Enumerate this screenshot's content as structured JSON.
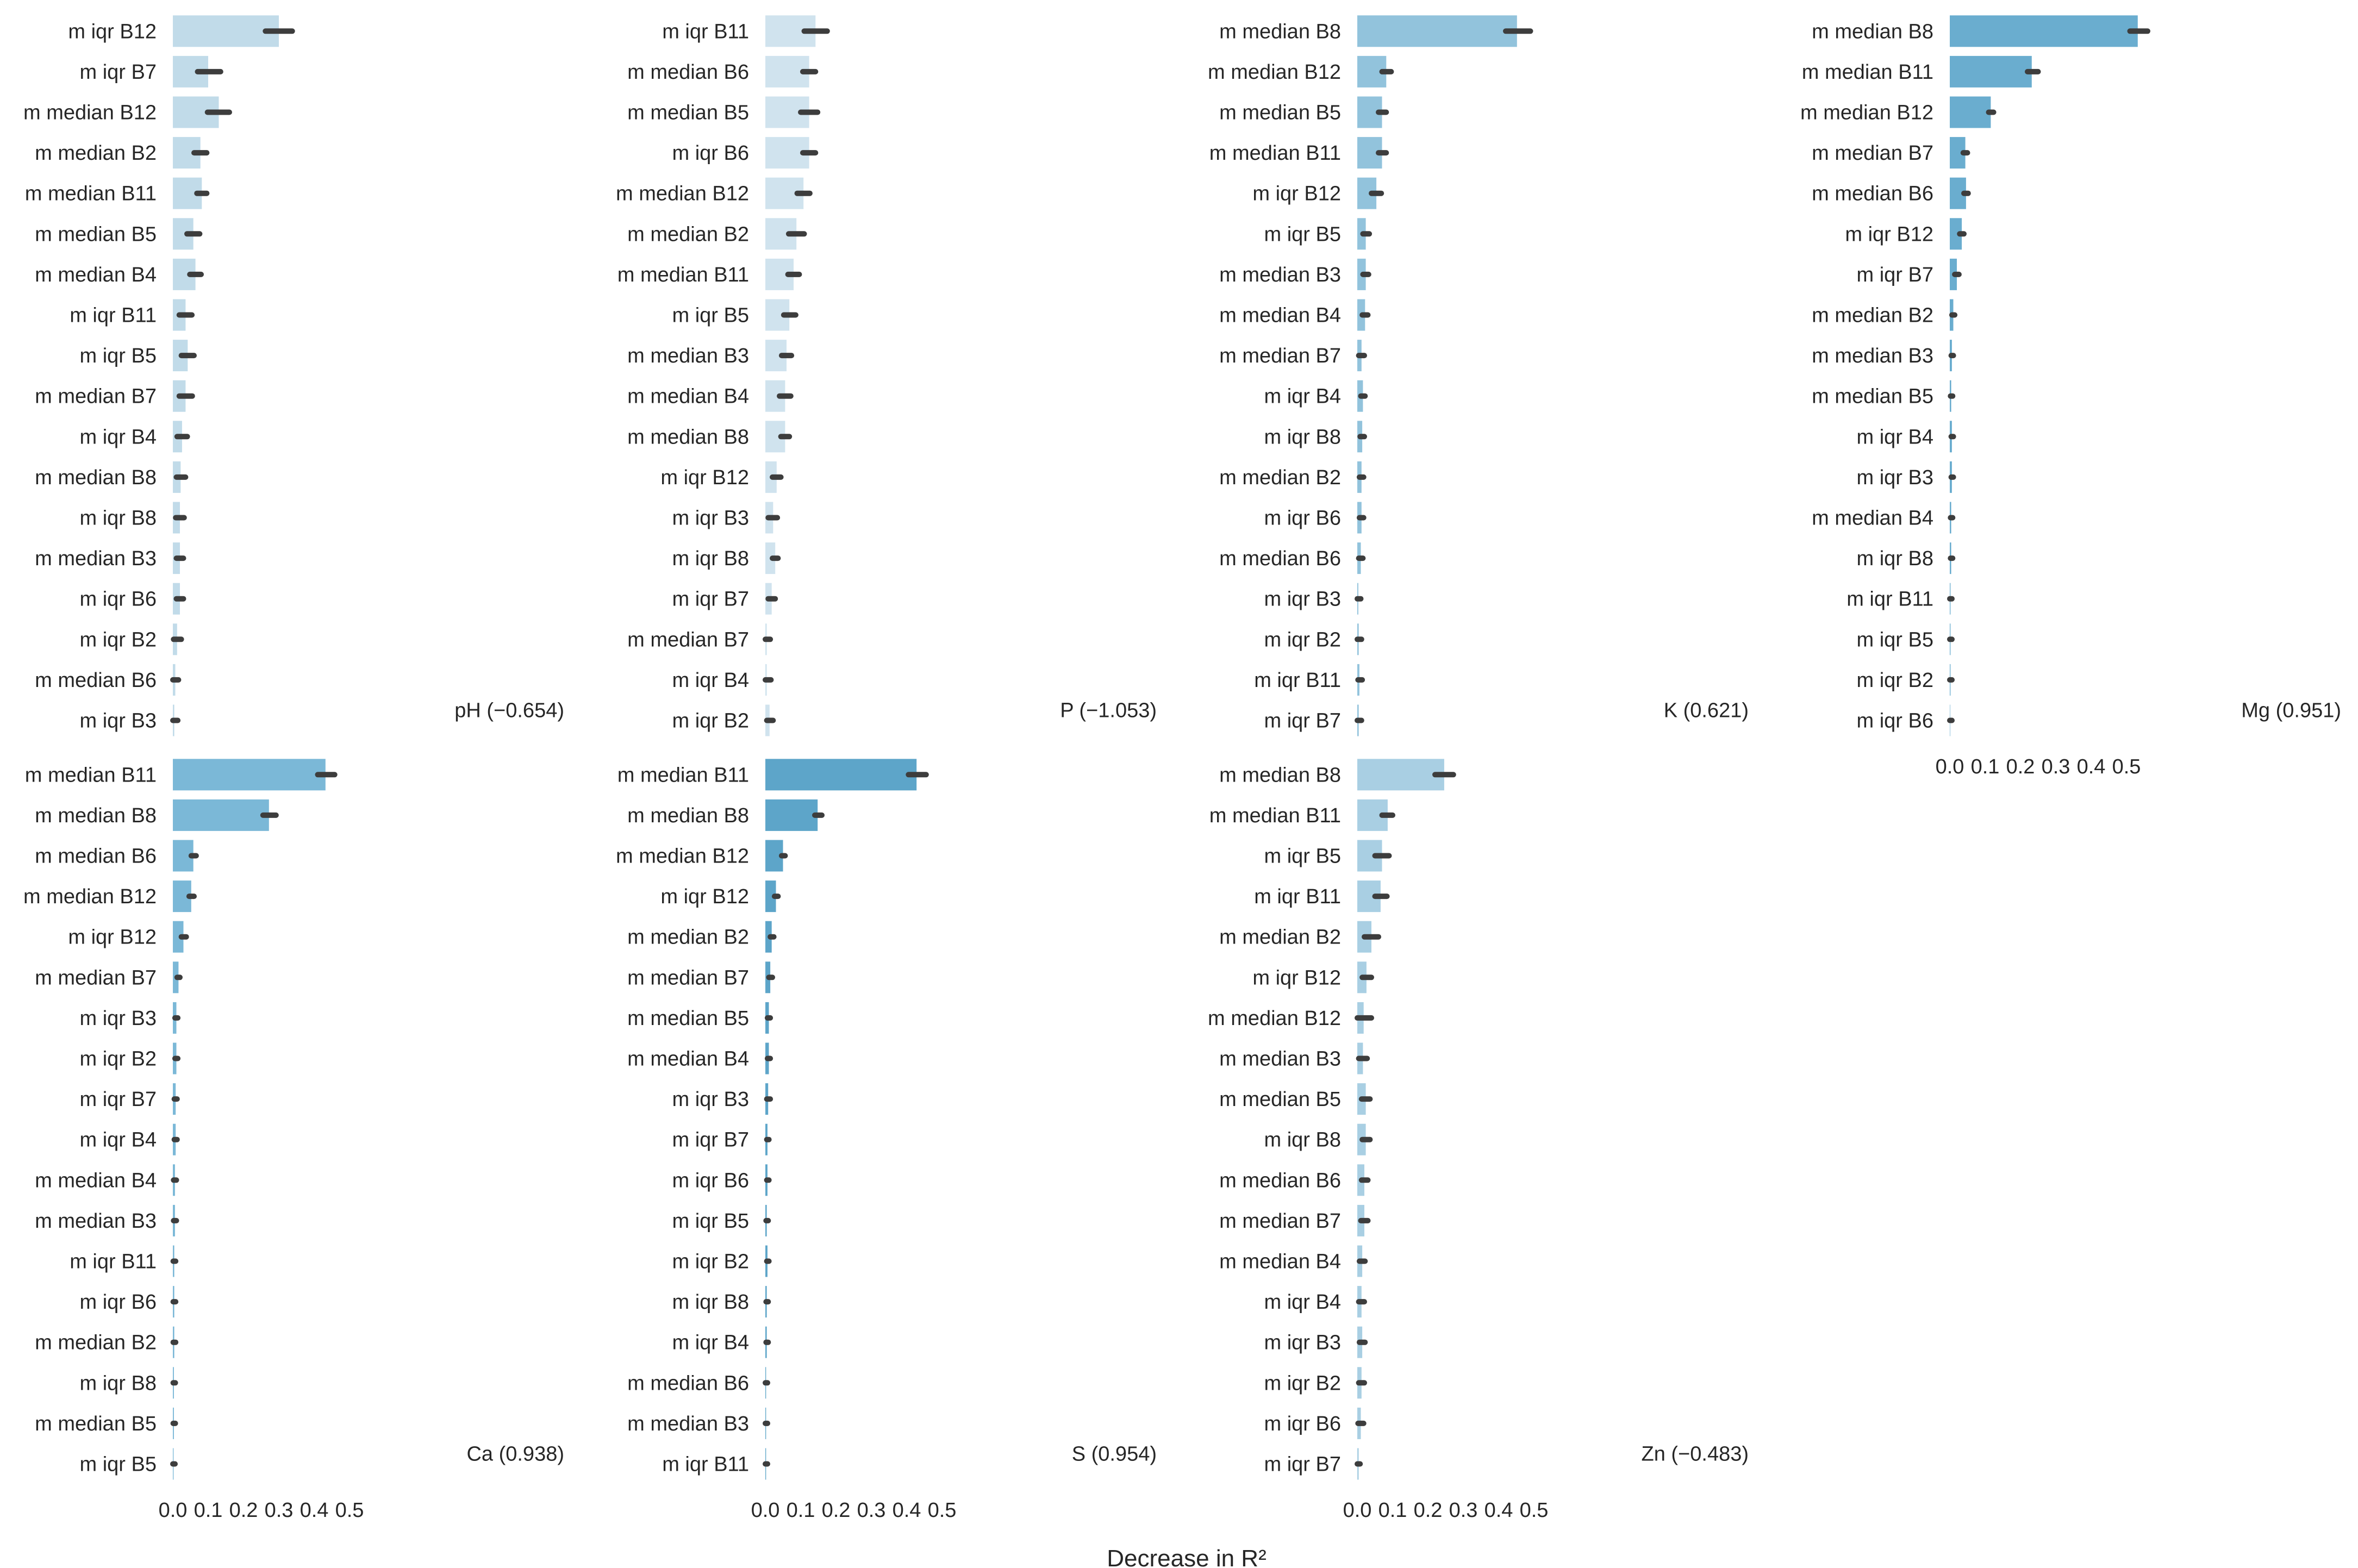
{
  "chart_data": [
    {
      "type": "bar",
      "orientation": "horizontal",
      "title": "pH (−0.654)",
      "color": "#c1dbe9",
      "categories": [
        "m iqr B12",
        "m iqr B7",
        "m median B12",
        "m median B2",
        "m median B11",
        "m median B5",
        "m median B4",
        "m iqr B11",
        "m iqr B5",
        "m median B7",
        "m iqr B4",
        "m median B8",
        "m iqr B8",
        "m median B3",
        "m iqr B6",
        "m iqr B2",
        "m median B6",
        "m iqr B3"
      ],
      "values": [
        0.3,
        0.1,
        0.13,
        0.078,
        0.082,
        0.058,
        0.064,
        0.036,
        0.042,
        0.036,
        0.026,
        0.022,
        0.02,
        0.02,
        0.02,
        0.012,
        0.007,
        0.004
      ],
      "ci_low": [
        0.262,
        0.07,
        0.098,
        0.06,
        0.068,
        0.04,
        0.048,
        0.018,
        0.024,
        0.018,
        0.012,
        0.01,
        0.008,
        0.01,
        0.01,
        0.002,
        0.0,
        0.0
      ],
      "ci_high": [
        0.338,
        0.135,
        0.16,
        0.096,
        0.096,
        0.076,
        0.08,
        0.054,
        0.06,
        0.055,
        0.041,
        0.036,
        0.032,
        0.03,
        0.03,
        0.024,
        0.016,
        0.014
      ],
      "xlim": [
        0,
        0.55
      ],
      "xticks": [
        "0.0",
        "0.1",
        "0.2",
        "0.3",
        "0.4",
        "0.5"
      ]
    },
    {
      "type": "bar",
      "orientation": "horizontal",
      "title": "P (−1.053)",
      "color": "#d0e3ee",
      "categories": [
        "m iqr B11",
        "m median B6",
        "m median B5",
        "m iqr B6",
        "m median B12",
        "m median B2",
        "m median B11",
        "m iqr B5",
        "m median B3",
        "m median B4",
        "m median B8",
        "m iqr B12",
        "m iqr B3",
        "m iqr B8",
        "m iqr B7",
        "m median B7",
        "m iqr B4",
        "m iqr B2"
      ],
      "values": [
        0.142,
        0.124,
        0.124,
        0.124,
        0.108,
        0.088,
        0.08,
        0.068,
        0.06,
        0.056,
        0.056,
        0.032,
        0.022,
        0.028,
        0.018,
        0.004,
        0.004,
        0.012
      ],
      "ci_low": [
        0.11,
        0.106,
        0.1,
        0.106,
        0.09,
        0.066,
        0.064,
        0.052,
        0.046,
        0.04,
        0.044,
        0.02,
        0.008,
        0.02,
        0.008,
        0.0,
        0.0,
        0.004
      ],
      "ci_high": [
        0.175,
        0.142,
        0.148,
        0.142,
        0.126,
        0.11,
        0.096,
        0.086,
        0.074,
        0.072,
        0.068,
        0.044,
        0.034,
        0.036,
        0.028,
        0.014,
        0.016,
        0.022
      ],
      "xlim": [
        0,
        0.55
      ],
      "xticks": [
        "0.0",
        "0.1",
        "0.2",
        "0.3",
        "0.4",
        "0.5"
      ]
    },
    {
      "type": "bar",
      "orientation": "horizontal",
      "title": "K (0.621)",
      "color": "#92c3dc",
      "categories": [
        "m median B8",
        "m median B12",
        "m median B5",
        "m median B11",
        "m iqr B12",
        "m iqr B5",
        "m median B3",
        "m median B4",
        "m median B7",
        "m iqr B4",
        "m iqr B8",
        "m median B2",
        "m iqr B6",
        "m median B6",
        "m iqr B3",
        "m iqr B2",
        "m iqr B11",
        "m iqr B7"
      ],
      "values": [
        0.452,
        0.082,
        0.07,
        0.07,
        0.054,
        0.024,
        0.024,
        0.022,
        0.012,
        0.016,
        0.014,
        0.012,
        0.012,
        0.01,
        0.003,
        0.004,
        0.006,
        0.004
      ],
      "ci_low": [
        0.42,
        0.07,
        0.06,
        0.06,
        0.04,
        0.016,
        0.016,
        0.014,
        0.004,
        0.01,
        0.008,
        0.006,
        0.006,
        0.004,
        0.0,
        0.0,
        0.002,
        0.0
      ],
      "ci_high": [
        0.49,
        0.096,
        0.082,
        0.082,
        0.068,
        0.034,
        0.032,
        0.03,
        0.02,
        0.022,
        0.02,
        0.018,
        0.018,
        0.016,
        0.01,
        0.012,
        0.014,
        0.012
      ],
      "xlim": [
        0,
        0.55
      ],
      "xticks": [
        "0.0",
        "0.1",
        "0.2",
        "0.3",
        "0.4",
        "0.5"
      ]
    },
    {
      "type": "bar",
      "orientation": "horizontal",
      "title": "Mg (0.951)",
      "color": "#6aadcf",
      "categories": [
        "m median B8",
        "m median B11",
        "m median B12",
        "m median B7",
        "m median B6",
        "m iqr B12",
        "m iqr B7",
        "m median B2",
        "m median B3",
        "m median B5",
        "m iqr B4",
        "m iqr B3",
        "m median B4",
        "m iqr B8",
        "m iqr B11",
        "m iqr B5",
        "m iqr B2",
        "m iqr B6"
      ],
      "values": [
        0.532,
        0.232,
        0.116,
        0.044,
        0.046,
        0.034,
        0.02,
        0.01,
        0.006,
        0.004,
        0.006,
        0.006,
        0.004,
        0.004,
        0.002,
        0.002,
        0.002,
        0.001
      ],
      "ci_low": [
        0.51,
        0.22,
        0.11,
        0.038,
        0.04,
        0.028,
        0.014,
        0.006,
        0.004,
        0.002,
        0.004,
        0.004,
        0.002,
        0.002,
        0.0,
        0.0,
        0.0,
        0.0
      ],
      "ci_high": [
        0.56,
        0.25,
        0.124,
        0.05,
        0.052,
        0.04,
        0.026,
        0.014,
        0.01,
        0.008,
        0.01,
        0.01,
        0.008,
        0.008,
        0.004,
        0.004,
        0.004,
        0.003
      ],
      "xlim": [
        0,
        0.55
      ],
      "xticks": [
        "0.0",
        "0.1",
        "0.2",
        "0.3",
        "0.4",
        "0.5"
      ]
    },
    {
      "type": "bar",
      "orientation": "horizontal",
      "title": "Ca (0.938)",
      "color": "#7bb8d7",
      "categories": [
        "m median B11",
        "m median B8",
        "m median B6",
        "m median B12",
        "m iqr B12",
        "m median B7",
        "m iqr B3",
        "m iqr B2",
        "m iqr B7",
        "m iqr B4",
        "m median B4",
        "m median B3",
        "m iqr B11",
        "m iqr B6",
        "m median B2",
        "m iqr B8",
        "m median B5",
        "m iqr B5"
      ],
      "values": [
        0.432,
        0.272,
        0.058,
        0.052,
        0.03,
        0.016,
        0.01,
        0.01,
        0.008,
        0.008,
        0.006,
        0.006,
        0.004,
        0.004,
        0.004,
        0.003,
        0.003,
        0.002
      ],
      "ci_low": [
        0.41,
        0.255,
        0.052,
        0.046,
        0.024,
        0.012,
        0.006,
        0.006,
        0.004,
        0.004,
        0.002,
        0.002,
        0.001,
        0.001,
        0.001,
        0.001,
        0.001,
        0.0
      ],
      "ci_high": [
        0.458,
        0.292,
        0.066,
        0.06,
        0.038,
        0.02,
        0.014,
        0.014,
        0.012,
        0.012,
        0.01,
        0.01,
        0.008,
        0.008,
        0.008,
        0.006,
        0.006,
        0.004
      ],
      "xlim": [
        0,
        0.55
      ],
      "xticks": [
        "0.0",
        "0.1",
        "0.2",
        "0.3",
        "0.4",
        "0.5"
      ]
    },
    {
      "type": "bar",
      "orientation": "horizontal",
      "title": "S (0.954)",
      "color": "#5da5c9",
      "categories": [
        "m median B11",
        "m median B8",
        "m median B12",
        "m iqr B12",
        "m median B2",
        "m median B7",
        "m median B5",
        "m median B4",
        "m iqr B3",
        "m iqr B7",
        "m iqr B6",
        "m iqr B5",
        "m iqr B2",
        "m iqr B8",
        "m iqr B4",
        "m median B6",
        "m median B3",
        "m iqr B11"
      ],
      "values": [
        0.428,
        0.148,
        0.05,
        0.03,
        0.018,
        0.014,
        0.01,
        0.01,
        0.008,
        0.006,
        0.006,
        0.004,
        0.006,
        0.004,
        0.004,
        0.002,
        0.002,
        0.002
      ],
      "ci_low": [
        0.405,
        0.14,
        0.046,
        0.026,
        0.014,
        0.01,
        0.006,
        0.006,
        0.004,
        0.004,
        0.004,
        0.002,
        0.004,
        0.002,
        0.002,
        0.0,
        0.0,
        0.0
      ],
      "ci_high": [
        0.455,
        0.16,
        0.056,
        0.036,
        0.024,
        0.02,
        0.014,
        0.014,
        0.014,
        0.01,
        0.01,
        0.008,
        0.01,
        0.008,
        0.008,
        0.004,
        0.004,
        0.004
      ],
      "xlim": [
        0,
        0.55
      ],
      "xticks": [
        "0.0",
        "0.1",
        "0.2",
        "0.3",
        "0.4",
        "0.5"
      ]
    },
    {
      "type": "bar",
      "orientation": "horizontal",
      "title": "Zn (−0.483)",
      "color": "#a9cfe3",
      "categories": [
        "m median B8",
        "m median B11",
        "m iqr B5",
        "m iqr B11",
        "m median B2",
        "m iqr B12",
        "m median B12",
        "m median B3",
        "m median B5",
        "m iqr B8",
        "m median B6",
        "m median B7",
        "m median B4",
        "m iqr B4",
        "m iqr B3",
        "m iqr B2",
        "m iqr B6",
        "m iqr B7"
      ],
      "values": [
        0.246,
        0.086,
        0.07,
        0.066,
        0.04,
        0.026,
        0.018,
        0.016,
        0.024,
        0.024,
        0.02,
        0.02,
        0.014,
        0.012,
        0.014,
        0.012,
        0.01,
        0.004
      ],
      "ci_low": [
        0.22,
        0.07,
        0.05,
        0.05,
        0.02,
        0.014,
        0.0,
        0.004,
        0.012,
        0.014,
        0.012,
        0.01,
        0.006,
        0.004,
        0.006,
        0.004,
        0.002,
        0.0
      ],
      "ci_high": [
        0.272,
        0.1,
        0.09,
        0.084,
        0.06,
        0.04,
        0.04,
        0.028,
        0.036,
        0.036,
        0.03,
        0.03,
        0.022,
        0.02,
        0.022,
        0.02,
        0.018,
        0.008
      ],
      "xlim": [
        0,
        0.55
      ],
      "xticks": [
        "0.0",
        "0.1",
        "0.2",
        "0.3",
        "0.4",
        "0.5"
      ]
    }
  ],
  "xlabel": "Decrease in R²"
}
